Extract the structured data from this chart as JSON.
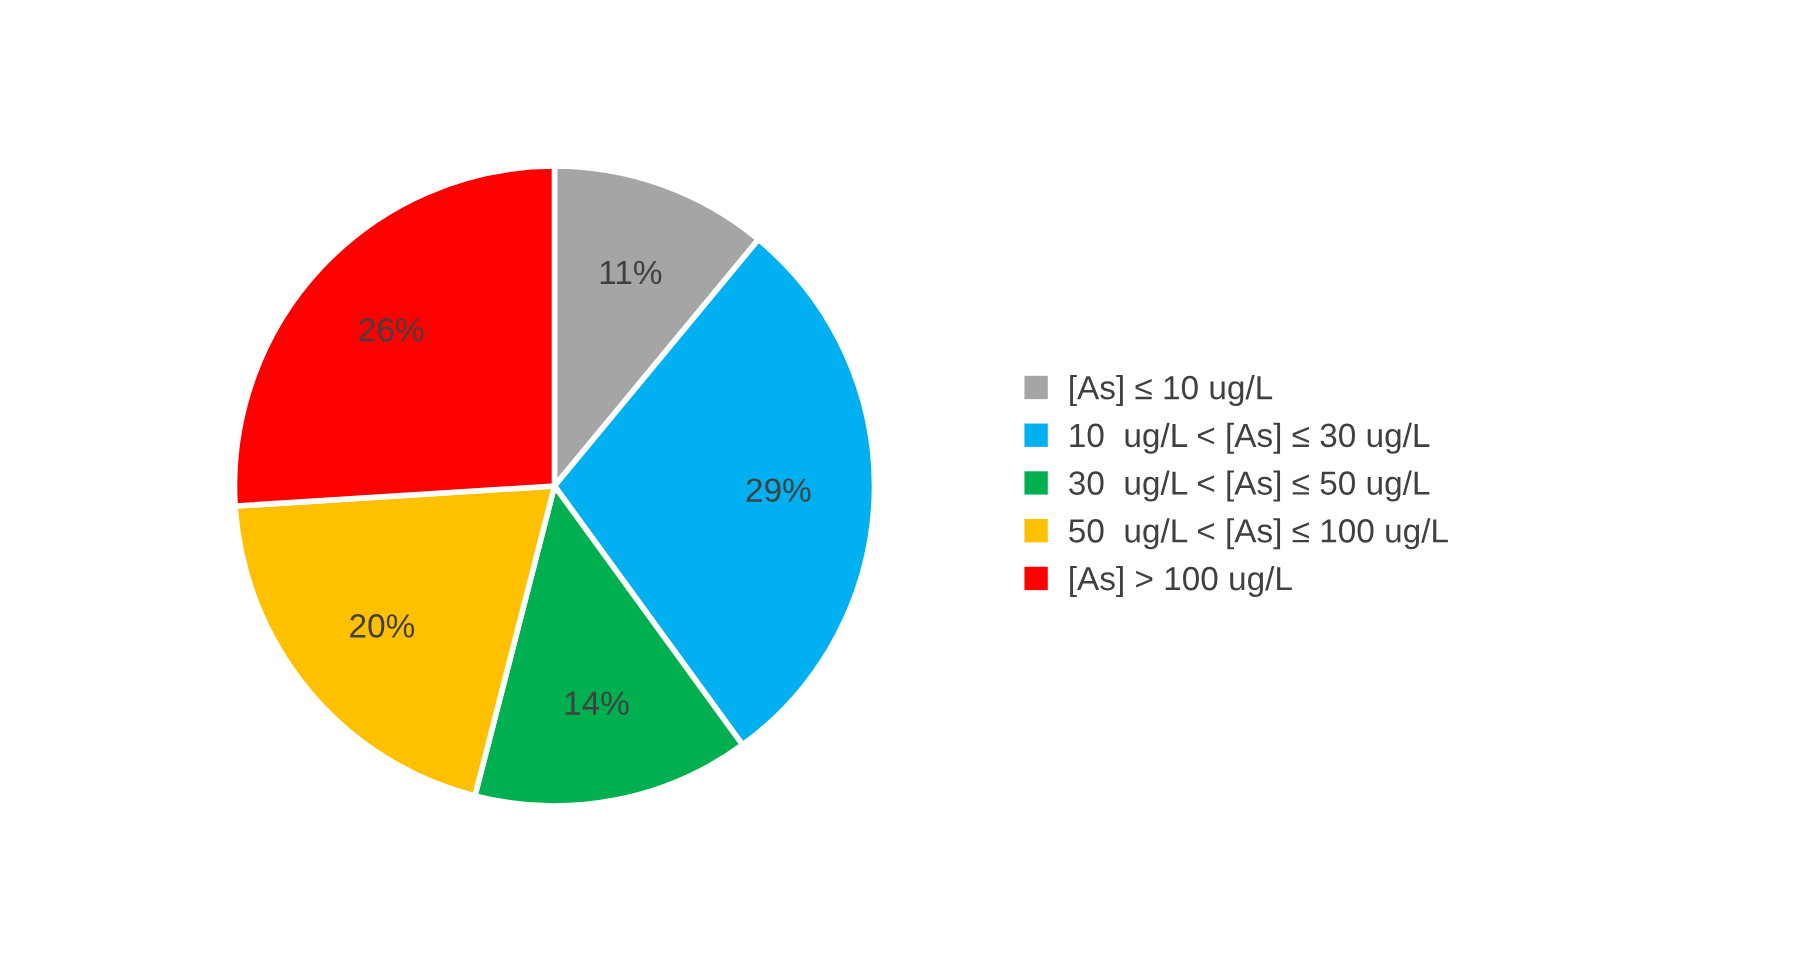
{
  "chart_data": {
    "type": "pie",
    "categories": [
      "[As] ≤ 10 ug/L",
      "10  ug/L < [As] ≤ 30 ug/L",
      "30  ug/L < [As] ≤ 50 ug/L",
      "50  ug/L < [As] ≤ 100 ug/L",
      "[As] > 100 ug/L"
    ],
    "values": [
      11,
      29,
      14,
      20,
      26
    ],
    "colors": [
      "#a5a5a5",
      "#00b0f0",
      "#00b050",
      "#ffc000",
      "#ff0000"
    ],
    "value_labels": [
      "11%",
      "29%",
      "14%",
      "20%",
      "26%"
    ],
    "legend": "right"
  }
}
